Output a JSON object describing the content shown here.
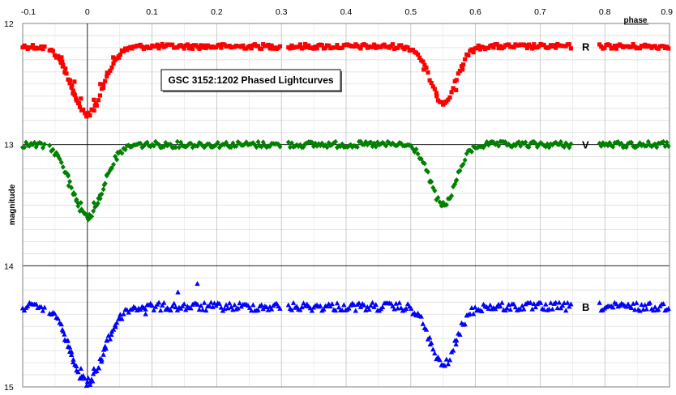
{
  "chart_data": {
    "type": "scatter",
    "title": "GSC 3152:1202 Phased Lightcurves",
    "xlabel": "phase",
    "ylabel": "magnitude",
    "xlim": [
      -0.1,
      0.9
    ],
    "ylim": [
      12,
      15
    ],
    "y_inverted": true,
    "x_ticks": [
      "-0.1",
      "0",
      "0.1",
      "0.2",
      "0.3",
      "0.4",
      "0.5",
      "0.6",
      "0.7",
      "0.8",
      "0.9"
    ],
    "y_ticks": [
      "12",
      "13",
      "14",
      "15"
    ],
    "grid": true,
    "gaps": [
      [
        -0.065,
        -0.06
      ],
      [
        0.3,
        0.31
      ],
      [
        0.75,
        0.79
      ]
    ],
    "series": [
      {
        "name": "R",
        "label": "R",
        "color": "#ff0000",
        "marker": "square",
        "baseline": 12.19,
        "primary_min": {
          "phase": 0.0,
          "depth": 0.56,
          "width": 0.034
        },
        "secondary_min": {
          "phase": 0.55,
          "depth": 0.46,
          "width": 0.028
        },
        "minima_points": [
          {
            "x": -0.04,
            "y": 12.28
          },
          {
            "x": -0.02,
            "y": 12.48
          },
          {
            "x": -0.01,
            "y": 12.62
          },
          {
            "x": 0.0,
            "y": 12.75
          },
          {
            "x": 0.01,
            "y": 12.63
          },
          {
            "x": 0.02,
            "y": 12.5
          },
          {
            "x": 0.04,
            "y": 12.28
          },
          {
            "x": 0.52,
            "y": 12.38
          },
          {
            "x": 0.54,
            "y": 12.6
          },
          {
            "x": 0.55,
            "y": 12.65
          },
          {
            "x": 0.57,
            "y": 12.55
          },
          {
            "x": 0.58,
            "y": 12.38
          }
        ]
      },
      {
        "name": "V",
        "label": "V",
        "color": "#008000",
        "marker": "diamond",
        "baseline": 13.0,
        "primary_min": {
          "phase": 0.0,
          "depth": 0.6,
          "width": 0.034
        },
        "secondary_min": {
          "phase": 0.55,
          "depth": 0.5,
          "width": 0.028
        },
        "minima_points": [
          {
            "x": -0.03,
            "y": 13.25
          },
          {
            "x": -0.01,
            "y": 13.48
          },
          {
            "x": 0.0,
            "y": 13.6
          },
          {
            "x": 0.01,
            "y": 13.48
          },
          {
            "x": 0.03,
            "y": 13.25
          },
          {
            "x": 0.53,
            "y": 13.3
          },
          {
            "x": 0.55,
            "y": 13.5
          },
          {
            "x": 0.57,
            "y": 13.3
          }
        ]
      },
      {
        "name": "B",
        "label": "B",
        "color": "#0000ff",
        "marker": "triangle",
        "baseline": 14.34,
        "primary_min": {
          "phase": 0.0,
          "depth": 0.62,
          "width": 0.036
        },
        "secondary_min": {
          "phase": 0.55,
          "depth": 0.48,
          "width": 0.028
        },
        "minima_points": [
          {
            "x": -0.03,
            "y": 14.62
          },
          {
            "x": -0.01,
            "y": 14.85
          },
          {
            "x": 0.0,
            "y": 14.96
          },
          {
            "x": 0.01,
            "y": 14.85
          },
          {
            "x": 0.03,
            "y": 14.62
          },
          {
            "x": 0.53,
            "y": 14.65
          },
          {
            "x": 0.55,
            "y": 14.82
          },
          {
            "x": 0.57,
            "y": 14.65
          }
        ],
        "outliers": [
          {
            "x": 0.14,
            "y": 14.22
          },
          {
            "x": 0.17,
            "y": 14.15
          },
          {
            "x": 0.09,
            "y": 14.4
          }
        ]
      }
    ]
  }
}
